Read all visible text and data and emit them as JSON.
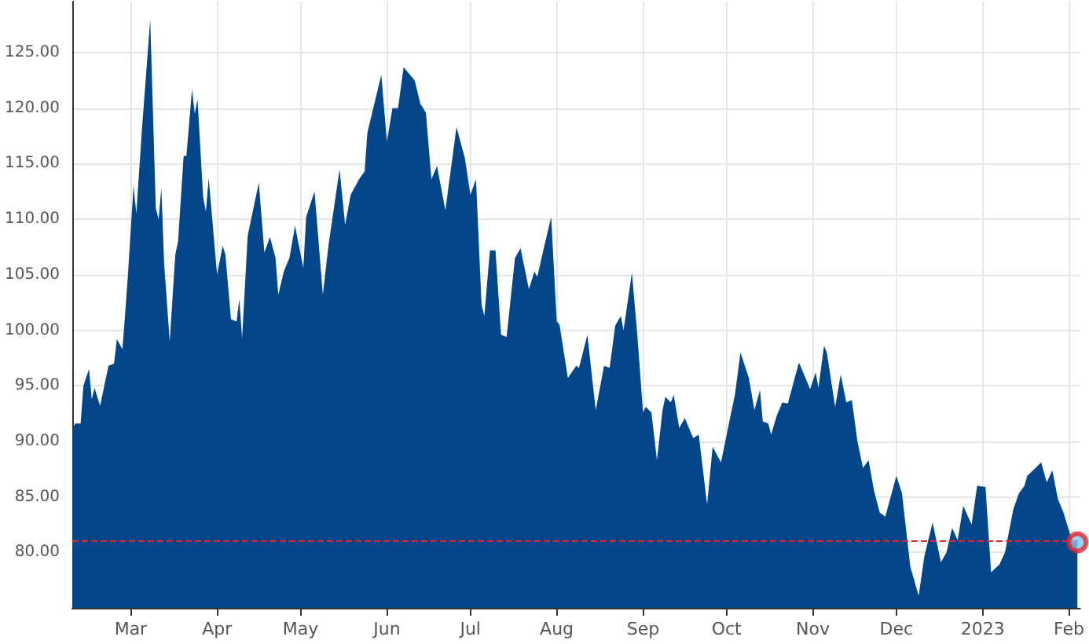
{
  "chart_data": {
    "type": "area",
    "series": [
      {
        "color": "#03478a",
        "x": [
          "2022-02-08",
          "2022-02-09",
          "2022-02-11",
          "2022-02-12",
          "2022-02-14",
          "2022-02-15",
          "2022-02-16",
          "2022-02-18",
          "2022-02-21",
          "2022-02-23",
          "2022-02-24",
          "2022-02-26",
          "2022-02-27",
          "2022-02-28",
          "2022-03-02",
          "2022-03-03",
          "2022-03-05",
          "2022-03-08",
          "2022-03-10",
          "2022-03-11",
          "2022-03-12",
          "2022-03-13",
          "2022-03-15",
          "2022-03-17",
          "2022-03-18",
          "2022-03-20",
          "2022-03-21",
          "2022-03-23",
          "2022-03-24",
          "2022-03-25",
          "2022-03-27",
          "2022-03-28",
          "2022-03-29",
          "2022-04-01",
          "2022-04-03",
          "2022-04-04",
          "2022-04-06",
          "2022-04-08",
          "2022-04-09",
          "2022-04-10",
          "2022-04-12",
          "2022-04-16",
          "2022-04-18",
          "2022-04-20",
          "2022-04-22",
          "2022-04-23",
          "2022-04-25",
          "2022-04-27",
          "2022-04-29",
          "2022-05-02",
          "2022-05-03",
          "2022-05-06",
          "2022-05-09",
          "2022-05-11",
          "2022-05-15",
          "2022-05-17",
          "2022-05-19",
          "2022-05-22",
          "2022-05-24",
          "2022-05-25",
          "2022-05-30",
          "2022-06-01",
          "2022-06-03",
          "2022-06-05",
          "2022-06-07",
          "2022-06-11",
          "2022-06-13",
          "2022-06-15",
          "2022-06-17",
          "2022-06-19",
          "2022-06-22",
          "2022-06-26",
          "2022-06-29",
          "2022-07-01",
          "2022-07-03",
          "2022-07-05",
          "2022-07-06",
          "2022-07-08",
          "2022-07-10",
          "2022-07-12",
          "2022-07-14",
          "2022-07-17",
          "2022-07-19",
          "2022-07-22",
          "2022-07-24",
          "2022-07-25",
          "2022-07-27",
          "2022-07-30",
          "2022-08-01",
          "2022-08-02",
          "2022-08-05",
          "2022-08-08",
          "2022-08-09",
          "2022-08-12",
          "2022-08-15",
          "2022-08-18",
          "2022-08-20",
          "2022-08-22",
          "2022-08-24",
          "2022-08-25",
          "2022-08-28",
          "2022-08-30",
          "2022-09-01",
          "2022-09-02",
          "2022-09-04",
          "2022-09-06",
          "2022-09-08",
          "2022-09-09",
          "2022-09-11",
          "2022-09-12",
          "2022-09-14",
          "2022-09-16",
          "2022-09-19",
          "2022-09-21",
          "2022-09-24",
          "2022-09-26",
          "2022-09-29",
          "2022-10-02",
          "2022-10-04",
          "2022-10-06",
          "2022-10-09",
          "2022-10-11",
          "2022-10-13",
          "2022-10-14",
          "2022-10-16",
          "2022-10-17",
          "2022-10-19",
          "2022-10-21",
          "2022-10-23",
          "2022-10-27",
          "2022-10-31",
          "2022-11-02",
          "2022-11-03",
          "2022-11-05",
          "2022-11-06",
          "2022-11-09",
          "2022-11-11",
          "2022-11-13",
          "2022-11-15",
          "2022-11-17",
          "2022-11-19",
          "2022-11-21",
          "2022-11-23",
          "2022-11-25",
          "2022-11-27",
          "2022-12-01",
          "2022-12-03",
          "2022-12-06",
          "2022-12-09",
          "2022-12-11",
          "2022-12-14",
          "2022-12-17",
          "2022-12-19",
          "2022-12-21",
          "2022-12-23",
          "2022-12-25",
          "2022-12-28",
          "2022-12-30",
          "2023-01-02",
          "2023-01-04",
          "2023-01-07",
          "2023-01-09",
          "2023-01-12",
          "2023-01-14",
          "2023-01-16",
          "2023-01-17",
          "2023-01-20",
          "2023-01-22",
          "2023-01-24",
          "2023-01-26",
          "2023-01-28",
          "2023-01-30",
          "2023-02-02",
          "2023-02-04"
        ],
        "values": [
          91.0,
          91.6,
          91.6,
          95.0,
          96.5,
          93.8,
          94.8,
          93.2,
          96.8,
          97.0,
          99.2,
          98.3,
          101.5,
          105.0,
          113.0,
          110.5,
          118.0,
          128.0,
          111.0,
          110.0,
          112.8,
          106.0,
          99.0,
          106.8,
          108.0,
          115.7,
          115.7,
          121.7,
          119.5,
          120.8,
          112.0,
          110.7,
          113.7,
          105.0,
          107.6,
          106.8,
          101.0,
          100.8,
          102.8,
          99.3,
          108.5,
          113.3,
          107.0,
          108.4,
          106.5,
          103.2,
          105.3,
          106.5,
          109.4,
          105.6,
          110.2,
          112.5,
          103.2,
          107.6,
          114.5,
          109.5,
          112.2,
          113.6,
          114.3,
          117.8,
          123.0,
          117.0,
          120.0,
          120.0,
          123.7,
          122.5,
          120.4,
          119.6,
          113.6,
          114.8,
          110.8,
          118.3,
          115.5,
          112.2,
          113.6,
          102.3,
          101.3,
          107.2,
          107.2,
          99.6,
          99.4,
          106.5,
          107.4,
          103.7,
          105.3,
          104.8,
          107.0,
          110.2,
          100.8,
          100.5,
          95.7,
          96.8,
          96.6,
          99.6,
          92.8,
          96.8,
          96.6,
          100.4,
          101.3,
          100.0,
          105.2,
          99.4,
          92.6,
          93.1,
          92.6,
          88.3,
          92.8,
          94.0,
          93.5,
          94.2,
          91.2,
          92.1,
          90.3,
          90.6,
          84.3,
          89.5,
          88.1,
          91.8,
          94.2,
          98.0,
          95.7,
          92.8,
          94.6,
          91.8,
          91.6,
          90.6,
          92.3,
          93.5,
          93.4,
          97.1,
          94.7,
          96.2,
          94.8,
          98.6,
          98.0,
          93.1,
          96.0,
          93.5,
          93.7,
          90.0,
          87.6,
          88.3,
          85.5,
          83.6,
          83.2,
          86.9,
          85.3,
          78.7,
          76.1,
          79.6,
          82.7,
          79.1,
          80.0,
          82.2,
          81.1,
          84.2,
          82.5,
          86.0,
          85.9,
          78.2,
          78.9,
          80.0,
          83.9,
          85.3,
          86.0,
          86.9,
          87.6,
          88.1,
          86.3,
          87.4,
          84.8,
          83.6,
          81.1,
          80.9
        ]
      },
      {
        "type": "scatter",
        "marker": "circle",
        "color": "#e3262f",
        "x": [
          "2023-02-04"
        ],
        "values": [
          80.9
        ]
      }
    ],
    "xlim": [
      "2022-02-08",
      "2023-02-05"
    ],
    "xticks": [
      {
        "value": "2022-03-01",
        "label": "Mar"
      },
      {
        "value": "2022-04-01",
        "label": "Apr"
      },
      {
        "value": "2022-05-01",
        "label": "May"
      },
      {
        "value": "2022-06-01",
        "label": "Jun"
      },
      {
        "value": "2022-07-01",
        "label": "Jul"
      },
      {
        "value": "2022-08-01",
        "label": "Aug"
      },
      {
        "value": "2022-09-01",
        "label": "Sep"
      },
      {
        "value": "2022-10-01",
        "label": "Oct"
      },
      {
        "value": "2022-11-01",
        "label": "Nov"
      },
      {
        "value": "2022-12-01",
        "label": "Dec"
      },
      {
        "value": "2023-01-01",
        "label": "2023"
      },
      {
        "value": "2023-02-01",
        "label": "Feb"
      }
    ],
    "ylim": [
      75,
      129.6
    ],
    "yticks": [
      {
        "value": 80,
        "label": "80.00"
      },
      {
        "value": 85,
        "label": "85.00"
      },
      {
        "value": 90,
        "label": "90.00"
      },
      {
        "value": 95,
        "label": "95.00"
      },
      {
        "value": 100,
        "label": "100.00"
      },
      {
        "value": 105,
        "label": "105.00"
      },
      {
        "value": 110,
        "label": "110.00"
      },
      {
        "value": 115,
        "label": "115.00"
      },
      {
        "value": 120,
        "label": "120.00"
      },
      {
        "value": 125,
        "label": "125.00"
      }
    ],
    "ref_lines": [
      {
        "axis": "y",
        "value": 81.0,
        "color": "#e3262f",
        "line_style": "dashed"
      }
    ],
    "grid": true
  }
}
